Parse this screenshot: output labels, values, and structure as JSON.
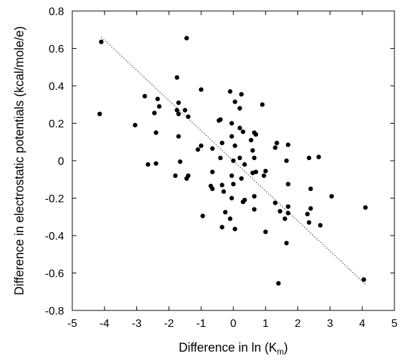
{
  "chart_data": {
    "type": "scatter",
    "xlabel": "Difference in ln (K",
    "xlabel_sub": "m",
    "xlabel_close": ")",
    "ylabel": "Difference in electrostatic potentials (kcal/mole/e)",
    "xlim": [
      -5,
      5
    ],
    "ylim": [
      -0.8,
      0.8
    ],
    "xticks": [
      "-5",
      "-4",
      "-3",
      "-2",
      "-1",
      "0",
      "1",
      "2",
      "3",
      "4",
      "5"
    ],
    "yticks": [
      "-0.8",
      "-0.6",
      "-0.4",
      "-0.2",
      "0",
      "0.2",
      "0.4",
      "0.6",
      "0.8"
    ],
    "grid": false,
    "marker_color": "#000000",
    "trend_line": {
      "x": [
        -4.1,
        4.1
      ],
      "y": [
        0.66,
        -0.66
      ],
      "style": "dashed",
      "color": "#555555"
    },
    "points": [
      {
        "x": -4.1,
        "y": 0.635
      },
      {
        "x": -4.15,
        "y": 0.25
      },
      {
        "x": -3.05,
        "y": 0.19
      },
      {
        "x": -2.75,
        "y": 0.345
      },
      {
        "x": -2.65,
        "y": -0.02
      },
      {
        "x": -2.45,
        "y": 0.255
      },
      {
        "x": -2.4,
        "y": 0.15
      },
      {
        "x": -2.35,
        "y": 0.33
      },
      {
        "x": -2.3,
        "y": 0.29
      },
      {
        "x": -2.4,
        "y": -0.015
      },
      {
        "x": -1.75,
        "y": 0.445
      },
      {
        "x": -1.7,
        "y": 0.31
      },
      {
        "x": -1.75,
        "y": 0.27
      },
      {
        "x": -1.7,
        "y": 0.25
      },
      {
        "x": -1.7,
        "y": 0.13
      },
      {
        "x": -1.65,
        "y": -0.005
      },
      {
        "x": -1.8,
        "y": -0.08
      },
      {
        "x": -1.5,
        "y": 0.27
      },
      {
        "x": -1.45,
        "y": 0.655
      },
      {
        "x": -1.4,
        "y": 0.235
      },
      {
        "x": -1.4,
        "y": -0.08
      },
      {
        "x": -1.45,
        "y": -0.095
      },
      {
        "x": -1.0,
        "y": 0.38
      },
      {
        "x": -1.1,
        "y": 0.06
      },
      {
        "x": -1.0,
        "y": 0.08
      },
      {
        "x": -0.95,
        "y": -0.295
      },
      {
        "x": -0.65,
        "y": 0.065
      },
      {
        "x": -0.65,
        "y": -0.06
      },
      {
        "x": -0.7,
        "y": -0.135
      },
      {
        "x": -0.65,
        "y": -0.15
      },
      {
        "x": -0.45,
        "y": 0.215
      },
      {
        "x": -0.4,
        "y": 0.22
      },
      {
        "x": -0.35,
        "y": 0.095
      },
      {
        "x": -0.4,
        "y": 0.015
      },
      {
        "x": -0.35,
        "y": -0.13
      },
      {
        "x": -0.3,
        "y": -0.165
      },
      {
        "x": -0.35,
        "y": -0.355
      },
      {
        "x": -0.25,
        "y": -0.275
      },
      {
        "x": -0.1,
        "y": 0.37
      },
      {
        "x": -0.05,
        "y": 0.2
      },
      {
        "x": -0.05,
        "y": 0.13
      },
      {
        "x": 0.0,
        "y": 0.0
      },
      {
        "x": -0.05,
        "y": -0.08
      },
      {
        "x": -0.05,
        "y": -0.2
      },
      {
        "x": -0.1,
        "y": -0.31
      },
      {
        "x": 0.05,
        "y": 0.08
      },
      {
        "x": 0.0,
        "y": -0.125
      },
      {
        "x": 0.05,
        "y": -0.365
      },
      {
        "x": 0.05,
        "y": 0.315
      },
      {
        "x": 0.2,
        "y": 0.28
      },
      {
        "x": 0.2,
        "y": 0.175
      },
      {
        "x": 0.25,
        "y": 0.355
      },
      {
        "x": 0.3,
        "y": 0.155
      },
      {
        "x": 0.2,
        "y": 0.015
      },
      {
        "x": 0.25,
        "y": -0.095
      },
      {
        "x": 0.3,
        "y": -0.22
      },
      {
        "x": 0.35,
        "y": -0.21
      },
      {
        "x": 0.35,
        "y": -0.02
      },
      {
        "x": 0.55,
        "y": 0.11
      },
      {
        "x": 0.6,
        "y": 0.055
      },
      {
        "x": 0.65,
        "y": 0.15
      },
      {
        "x": 0.7,
        "y": 0.14
      },
      {
        "x": 0.65,
        "y": 0.015
      },
      {
        "x": 0.6,
        "y": -0.065
      },
      {
        "x": 0.7,
        "y": -0.06
      },
      {
        "x": 0.65,
        "y": -0.19
      },
      {
        "x": 0.65,
        "y": -0.26
      },
      {
        "x": 0.9,
        "y": 0.3
      },
      {
        "x": 0.95,
        "y": -0.08
      },
      {
        "x": 1.0,
        "y": -0.055
      },
      {
        "x": 1.0,
        "y": -0.38
      },
      {
        "x": 1.3,
        "y": 0.07
      },
      {
        "x": 1.35,
        "y": 0.095
      },
      {
        "x": 1.3,
        "y": -0.225
      },
      {
        "x": 1.45,
        "y": -0.27
      },
      {
        "x": 1.4,
        "y": -0.655
      },
      {
        "x": 1.6,
        "y": -0.31
      },
      {
        "x": 1.65,
        "y": 0.0
      },
      {
        "x": 1.7,
        "y": 0.085
      },
      {
        "x": 1.7,
        "y": -0.125
      },
      {
        "x": 1.7,
        "y": -0.245
      },
      {
        "x": 1.7,
        "y": -0.28
      },
      {
        "x": 1.65,
        "y": -0.44
      },
      {
        "x": 2.35,
        "y": 0.015
      },
      {
        "x": 2.4,
        "y": -0.15
      },
      {
        "x": 2.4,
        "y": -0.255
      },
      {
        "x": 2.3,
        "y": -0.285
      },
      {
        "x": 2.35,
        "y": -0.33
      },
      {
        "x": 2.65,
        "y": 0.02
      },
      {
        "x": 2.7,
        "y": -0.345
      },
      {
        "x": 3.05,
        "y": -0.19
      },
      {
        "x": 4.1,
        "y": -0.25
      },
      {
        "x": 4.05,
        "y": -0.635
      }
    ]
  }
}
